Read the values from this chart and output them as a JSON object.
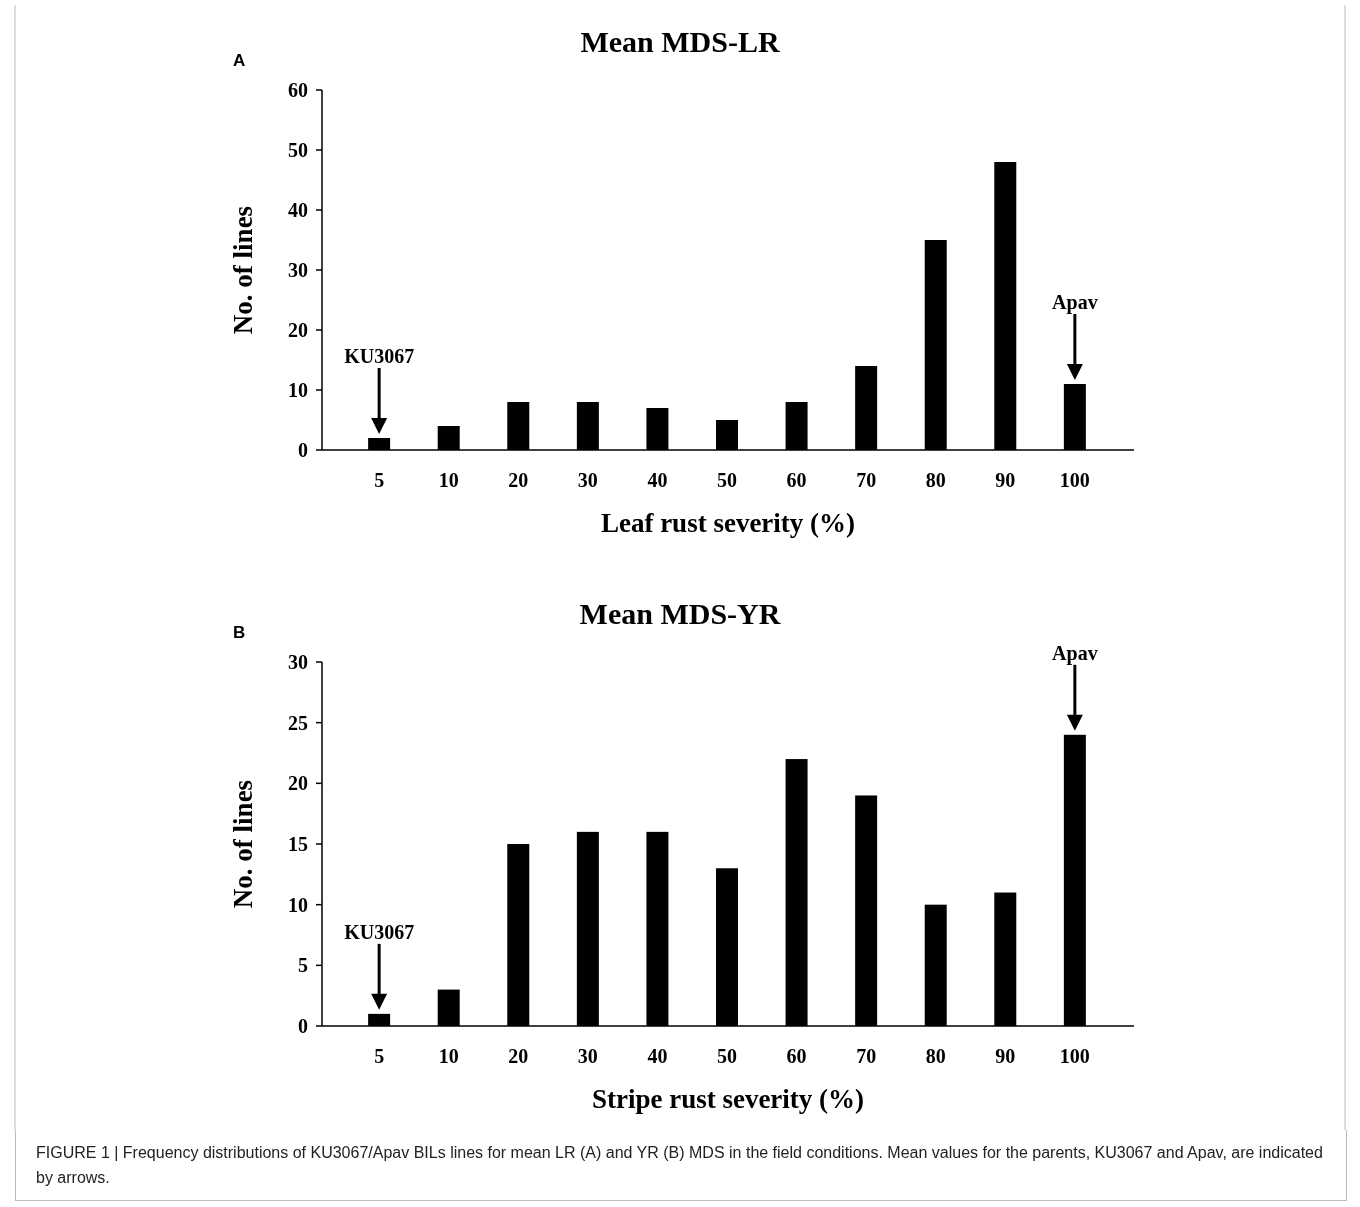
{
  "chart_data": [
    {
      "type": "bar",
      "title": "Mean MDS-LR",
      "xlabel": "Leaf rust severity (%)",
      "ylabel": "No. of lines",
      "categories": [
        "5",
        "10",
        "20",
        "30",
        "40",
        "50",
        "60",
        "70",
        "80",
        "90",
        "100"
      ],
      "values": [
        2,
        4,
        8,
        8,
        7,
        5,
        8,
        14,
        35,
        48,
        11
      ],
      "color": "#000000",
      "ylim": [
        0,
        60
      ],
      "yticks": [
        0,
        10,
        20,
        30,
        40,
        50,
        60
      ],
      "annotations": [
        "A",
        "KU3067",
        "Apav"
      ]
    },
    {
      "type": "bar",
      "title": "Mean MDS-YR",
      "xlabel": "Stripe rust severity (%)",
      "ylabel": "No. of lines",
      "categories": [
        "5",
        "10",
        "20",
        "30",
        "40",
        "50",
        "60",
        "70",
        "80",
        "90",
        "100"
      ],
      "values": [
        1,
        3,
        15,
        16,
        16,
        13,
        22,
        19,
        10,
        11,
        24
      ],
      "color": "#000000",
      "ylim": [
        0,
        30
      ],
      "yticks": [
        0,
        5,
        10,
        15,
        20,
        25,
        30
      ],
      "annotations": [
        "B",
        "KU3067",
        "Apav",
        "FIGURE 1 | Frequency distributions of KU3067/Apav BILs lines for mean LR (A) and YR (B) MDS in the field conditions. Mean values for the parents, KU3067 and Apav, are indicated by arrows."
      ]
    }
  ]
}
